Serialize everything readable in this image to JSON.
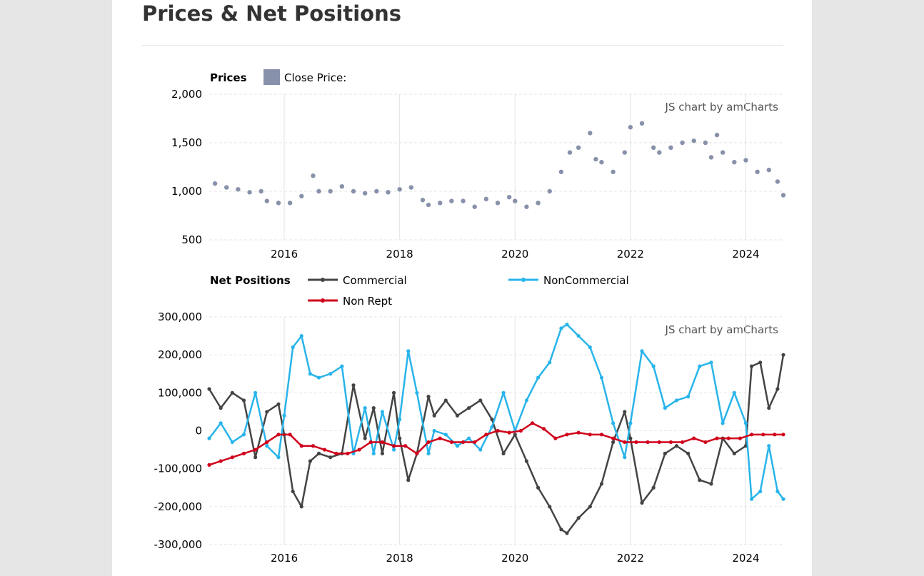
{
  "page": {
    "title": "Prices & Net Positions"
  },
  "chart_data": [
    {
      "type": "scatter",
      "legend_title": "Prices",
      "series": [
        {
          "name": "Close Price:",
          "color": "#8891aa",
          "x": [
            2014.8,
            2015.0,
            2015.2,
            2015.4,
            2015.6,
            2015.7,
            2015.9,
            2016.1,
            2016.3,
            2016.5,
            2016.6,
            2016.8,
            2017.0,
            2017.2,
            2017.4,
            2017.6,
            2017.8,
            2018.0,
            2018.2,
            2018.4,
            2018.5,
            2018.7,
            2018.9,
            2019.1,
            2019.3,
            2019.5,
            2019.7,
            2019.9,
            2020.0,
            2020.2,
            2020.4,
            2020.6,
            2020.8,
            2020.95,
            2021.1,
            2021.3,
            2021.4,
            2021.5,
            2021.7,
            2021.9,
            2022.0,
            2022.2,
            2022.4,
            2022.5,
            2022.7,
            2022.9,
            2023.1,
            2023.3,
            2023.4,
            2023.5,
            2023.6,
            2023.8,
            2024.0,
            2024.2,
            2024.4,
            2024.55,
            2024.65
          ],
          "y": [
            1080,
            1040,
            1020,
            990,
            1000,
            900,
            880,
            880,
            950,
            1160,
            1000,
            1000,
            1050,
            1000,
            980,
            1000,
            990,
            1020,
            1040,
            910,
            860,
            880,
            900,
            900,
            840,
            920,
            880,
            940,
            900,
            840,
            880,
            1000,
            1200,
            1400,
            1450,
            1600,
            1330,
            1300,
            1200,
            1400,
            1660,
            1700,
            1450,
            1400,
            1450,
            1500,
            1520,
            1500,
            1350,
            1580,
            1400,
            1300,
            1320,
            1200,
            1220,
            1100,
            960
          ]
        }
      ],
      "ylim": [
        500,
        2000
      ],
      "xlim": [
        2014.7,
        2024.65
      ],
      "y_ticks": [
        "2,000",
        "1,500",
        "1,000",
        "500"
      ],
      "y_tick_values": [
        2000,
        1500,
        1000,
        500
      ],
      "x_ticks": [
        "2016",
        "2018",
        "2020",
        "2022",
        "2024"
      ],
      "x_tick_values": [
        2016,
        2018,
        2020,
        2022,
        2024
      ],
      "credit": "JS chart by amCharts",
      "grid": true
    },
    {
      "type": "line",
      "legend_title": "Net Positions",
      "series": [
        {
          "name": "Commercial",
          "color": "#444444",
          "x": [
            2014.7,
            2014.9,
            2015.1,
            2015.3,
            2015.5,
            2015.7,
            2015.9,
            2016.0,
            2016.15,
            2016.3,
            2016.45,
            2016.6,
            2016.8,
            2017.0,
            2017.2,
            2017.4,
            2017.55,
            2017.7,
            2017.9,
            2018.0,
            2018.15,
            2018.3,
            2018.5,
            2018.6,
            2018.8,
            2019.0,
            2019.2,
            2019.4,
            2019.6,
            2019.8,
            2020.0,
            2020.2,
            2020.4,
            2020.6,
            2020.8,
            2020.9,
            2021.1,
            2021.3,
            2021.5,
            2021.7,
            2021.9,
            2022.0,
            2022.2,
            2022.4,
            2022.6,
            2022.8,
            2023.0,
            2023.2,
            2023.4,
            2023.6,
            2023.8,
            2024.0,
            2024.1,
            2024.25,
            2024.4,
            2024.55,
            2024.65
          ],
          "y": [
            110000,
            60000,
            100000,
            80000,
            -70000,
            50000,
            70000,
            -10000,
            -160000,
            -200000,
            -80000,
            -60000,
            -70000,
            -60000,
            120000,
            -20000,
            60000,
            -60000,
            100000,
            -20000,
            -130000,
            -60000,
            90000,
            40000,
            80000,
            40000,
            60000,
            80000,
            30000,
            -60000,
            -10000,
            -80000,
            -150000,
            -200000,
            -260000,
            -270000,
            -230000,
            -200000,
            -140000,
            -30000,
            50000,
            -20000,
            -190000,
            -150000,
            -60000,
            -40000,
            -60000,
            -130000,
            -140000,
            -20000,
            -60000,
            -40000,
            170000,
            180000,
            60000,
            110000,
            200000
          ]
        },
        {
          "name": "NonCommercial",
          "color": "#28b4ea",
          "x": [
            2014.7,
            2014.9,
            2015.1,
            2015.3,
            2015.5,
            2015.7,
            2015.9,
            2016.0,
            2016.15,
            2016.3,
            2016.45,
            2016.6,
            2016.8,
            2017.0,
            2017.2,
            2017.4,
            2017.55,
            2017.7,
            2017.9,
            2018.0,
            2018.15,
            2018.3,
            2018.5,
            2018.6,
            2018.8,
            2019.0,
            2019.2,
            2019.4,
            2019.6,
            2019.8,
            2020.0,
            2020.2,
            2020.4,
            2020.6,
            2020.8,
            2020.9,
            2021.1,
            2021.3,
            2021.5,
            2021.7,
            2021.9,
            2022.0,
            2022.2,
            2022.4,
            2022.6,
            2022.8,
            2023.0,
            2023.2,
            2023.4,
            2023.6,
            2023.8,
            2024.0,
            2024.1,
            2024.25,
            2024.4,
            2024.55,
            2024.65
          ],
          "y": [
            -20000,
            20000,
            -30000,
            -10000,
            100000,
            -40000,
            -70000,
            40000,
            220000,
            250000,
            150000,
            140000,
            150000,
            170000,
            -60000,
            60000,
            -60000,
            50000,
            -50000,
            30000,
            210000,
            100000,
            -60000,
            0,
            -10000,
            -40000,
            -20000,
            -50000,
            10000,
            100000,
            0,
            80000,
            140000,
            180000,
            270000,
            280000,
            250000,
            220000,
            140000,
            20000,
            -70000,
            20000,
            210000,
            170000,
            60000,
            80000,
            90000,
            170000,
            180000,
            20000,
            100000,
            20000,
            -180000,
            -160000,
            -40000,
            -160000,
            -180000
          ]
        },
        {
          "name": "Non Rept",
          "color": "#d0021b",
          "x": [
            2014.7,
            2014.9,
            2015.1,
            2015.3,
            2015.5,
            2015.7,
            2015.9,
            2016.1,
            2016.3,
            2016.5,
            2016.7,
            2016.9,
            2017.1,
            2017.3,
            2017.5,
            2017.7,
            2017.9,
            2018.1,
            2018.3,
            2018.5,
            2018.7,
            2018.9,
            2019.1,
            2019.3,
            2019.5,
            2019.7,
            2019.9,
            2020.1,
            2020.3,
            2020.5,
            2020.7,
            2020.9,
            2021.1,
            2021.3,
            2021.5,
            2021.7,
            2021.9,
            2022.1,
            2022.3,
            2022.5,
            2022.7,
            2022.9,
            2023.1,
            2023.3,
            2023.5,
            2023.7,
            2023.9,
            2024.1,
            2024.3,
            2024.5,
            2024.65
          ],
          "y": [
            -90000,
            -80000,
            -70000,
            -60000,
            -50000,
            -30000,
            -10000,
            -10000,
            -40000,
            -40000,
            -50000,
            -60000,
            -60000,
            -50000,
            -30000,
            -30000,
            -40000,
            -40000,
            -60000,
            -30000,
            -20000,
            -30000,
            -30000,
            -30000,
            -10000,
            0,
            -5000,
            0,
            20000,
            5000,
            -20000,
            -10000,
            -5000,
            -10000,
            -10000,
            -20000,
            -30000,
            -30000,
            -30000,
            -30000,
            -30000,
            -30000,
            -20000,
            -30000,
            -20000,
            -20000,
            -20000,
            -10000,
            -10000,
            -10000,
            -10000
          ]
        }
      ],
      "ylim": [
        -300000,
        300000
      ],
      "xlim": [
        2014.7,
        2024.65
      ],
      "y_ticks": [
        "300,000",
        "200,000",
        "100,000",
        "0",
        "-100,000",
        "-200,000",
        "-300,000"
      ],
      "y_tick_values": [
        300000,
        200000,
        100000,
        0,
        -100000,
        -200000,
        -300000
      ],
      "x_ticks": [
        "2016",
        "2018",
        "2020",
        "2022",
        "2024"
      ],
      "x_tick_values": [
        2016,
        2018,
        2020,
        2022,
        2024
      ],
      "credit": "JS chart by amCharts",
      "grid": true
    }
  ]
}
